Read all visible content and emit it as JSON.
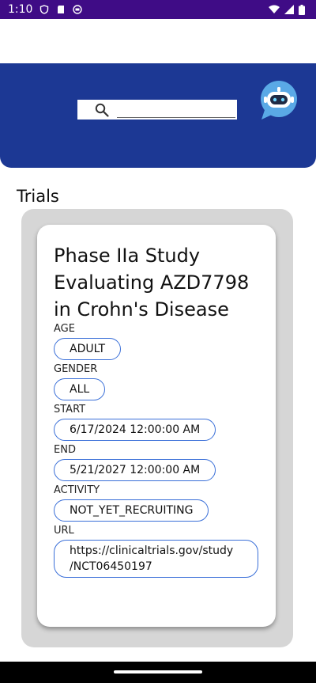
{
  "status_bar": {
    "time": "1:10"
  },
  "search": {
    "placeholder": ""
  },
  "section": {
    "title": "Trials"
  },
  "trial": {
    "title": "Phase IIa Study Evaluating AZD7798 in Crohn's Disease",
    "fields": [
      {
        "label": "AGE",
        "value": "ADULT"
      },
      {
        "label": "GENDER",
        "value": "ALL"
      },
      {
        "label": "START",
        "value": "6/17/2024 12:00:00 AM"
      },
      {
        "label": "END",
        "value": "5/21/2027 12:00:00 AM"
      },
      {
        "label": "ACTIVITY",
        "value": "NOT_YET_RECRUITING"
      },
      {
        "label": "URL",
        "value_line1": "https://clinicaltrials.gov/study",
        "value_line2": "/NCT06450197"
      }
    ]
  },
  "colors": {
    "status_bar": "#3f0c86",
    "header": "#1c3894",
    "pill_border": "#3a6fd8",
    "outer_card": "#d6d6d6"
  },
  "icons": {
    "search": "search-icon",
    "bot": "chatbot-icon"
  }
}
